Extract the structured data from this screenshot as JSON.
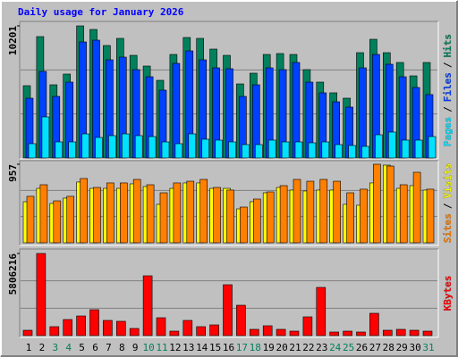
{
  "chart_data": [
    {
      "type": "bar",
      "title": "Daily usage for January 2026",
      "ylim": [
        0,
        10201
      ],
      "yticks": [
        10201
      ],
      "legend_separator": "/",
      "series": [
        {
          "name": "Hits",
          "color": "#00805c",
          "values": [
            5583,
            9374,
            5652,
            6479,
            10201,
            9925,
            8685,
            9236,
            7926,
            7099,
            5997,
            7995,
            9305,
            9236,
            8409,
            7926,
            5721,
            6548,
            7995,
            8064,
            7995,
            6824,
            5859,
            5032,
            4618,
            8133,
            9167,
            8133,
            7375,
            6341,
            7375
          ]
        },
        {
          "name": "Files",
          "color": "#0040ff",
          "values": [
            4618,
            6686,
            4756,
            5859,
            8961,
            9098,
            7582,
            7789,
            6824,
            6272,
            5238,
            7306,
            8271,
            7582,
            6961,
            6893,
            4756,
            5652,
            6961,
            6824,
            7375,
            5859,
            5032,
            4342,
            3929,
            6961,
            7995,
            7237,
            6272,
            5445,
            4894
          ]
        },
        {
          "name": "Pages",
          "color": "#00e0ff",
          "values": [
            1103,
            3171,
            1241,
            1241,
            1861,
            1585,
            1723,
            1861,
            1723,
            1654,
            1241,
            1103,
            1861,
            1448,
            1379,
            1241,
            1034,
            1034,
            1379,
            1241,
            1241,
            1172,
            1241,
            1034,
            965,
            896,
            1792,
            1999,
            1379,
            1379,
            1654
          ]
        }
      ]
    },
    {
      "type": "bar",
      "ylim": [
        0,
        957
      ],
      "yticks": [
        957
      ],
      "legend_separator": "/",
      "series": [
        {
          "name": "Visits",
          "color": "#ffff00",
          "values": [
            500,
            663,
            479,
            544,
            740,
            663,
            663,
            663,
            718,
            685,
            468,
            663,
            729,
            729,
            663,
            663,
            413,
            500,
            609,
            674,
            642,
            631,
            642,
            642,
            468,
            457,
            729,
            946,
            663,
            696,
            642
          ]
        },
        {
          "name": "Sites",
          "color": "#ff8000",
          "values": [
            566,
            707,
            511,
            566,
            783,
            674,
            729,
            729,
            772,
            707,
            609,
            729,
            750,
            772,
            674,
            642,
            435,
            533,
            620,
            696,
            772,
            750,
            772,
            750,
            609,
            653,
            957,
            935,
            707,
            859,
            653
          ]
        }
      ]
    },
    {
      "type": "bar",
      "ylim": [
        0,
        5806216
      ],
      "yticks": [
        5806216
      ],
      "categories": [
        "1",
        "2",
        "3",
        "4",
        "5",
        "6",
        "7",
        "8",
        "9",
        "10",
        "11",
        "12",
        "13",
        "14",
        "15",
        "16",
        "17",
        "18",
        "19",
        "20",
        "21",
        "22",
        "23",
        "24",
        "25",
        "26",
        "27",
        "28",
        "29",
        "30",
        "31"
      ],
      "category_colors": [
        "#000000",
        "#000000",
        "#00805c",
        "#00805c",
        "#000000",
        "#000000",
        "#000000",
        "#000000",
        "#000000",
        "#00805c",
        "#00805c",
        "#000000",
        "#000000",
        "#000000",
        "#000000",
        "#000000",
        "#00805c",
        "#00805c",
        "#000000",
        "#000000",
        "#000000",
        "#000000",
        "#000000",
        "#00805c",
        "#00805c",
        "#000000",
        "#000000",
        "#000000",
        "#000000",
        "#000000",
        "#00805c"
      ],
      "series": [
        {
          "name": "KBytes",
          "color": "#ff0000",
          "values": [
            378666,
            5806216,
            631110,
            1136000,
            1388442,
            1830219,
            1072887,
            1009776,
            504888,
            4228437,
            1262220,
            315555,
            1072887,
            631110,
            757332,
            3597327,
            2145774,
            441777,
            694221,
            441777,
            315555,
            1325331,
            3407994,
            252444,
            315555,
            252444,
            1577775,
            378666,
            441777,
            378666,
            315555
          ]
        }
      ]
    }
  ]
}
